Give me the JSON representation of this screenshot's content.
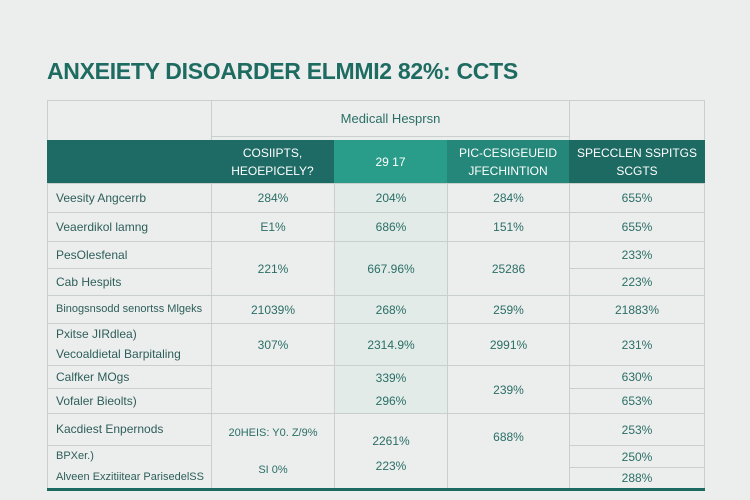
{
  "title": "ANXEIETY DISOARDER ELMMI2 82%: CCTS",
  "header": {
    "group": "Medicall Hesprsn",
    "cols": [
      "COSIIPTS, HEOEPICELY?",
      "29 17",
      "PIC-CESIGEUEID JFECHINTION",
      "SPECCLEN SSPITGS SCGTS"
    ]
  },
  "rows": {
    "r1": {
      "label": "Veesity Angcerrb",
      "v": [
        "284%",
        "204%",
        "284%",
        "655%"
      ]
    },
    "r2": {
      "label": "Veaerdikol lamng",
      "v": [
        "E1%",
        "686%",
        "151%",
        "655%"
      ]
    },
    "r3": {
      "label_a": "PesOlesfenal",
      "label_b": "Cab Hespits",
      "v": [
        "221%",
        "667.96%",
        "25286"
      ],
      "v4a": "233%",
      "v4b": "223%"
    },
    "r4": {
      "label": "Binogsnsodd senortss Mlgeks",
      "v": [
        "21039%",
        "268%",
        "259%",
        "21883%"
      ]
    },
    "r5": {
      "label_a": "Pxitse JIRdlea)",
      "label_b": "Vecoaldietal Barpitaling",
      "v": [
        "307%",
        "2314.9%",
        "2991%",
        "231%"
      ]
    },
    "r6": {
      "label_a": "Calfker MOgs",
      "label_b": "Vofaler Bieolts)",
      "v2a": "339%",
      "v2b": "296%",
      "v3": "239%",
      "v4a": "630%",
      "v4b": "653%"
    },
    "r7": {
      "label_a": "Kacdiest Enpernods",
      "label_b1": "BPXer.)",
      "label_b2": "Alveen Exzitiitear ParisedelSS",
      "v1a": "20HEIS: Y0. Z/9%",
      "v1b": "SI 0%",
      "v2a": "2261%",
      "v2b": "223%",
      "v3": "688%",
      "v4a": "253%",
      "v4b": "250%",
      "v4c": "288%"
    }
  },
  "colors": {
    "teal_dark": "#1e6b66",
    "teal_light": "#2a9d8a",
    "teal_mid": "#24877a"
  }
}
